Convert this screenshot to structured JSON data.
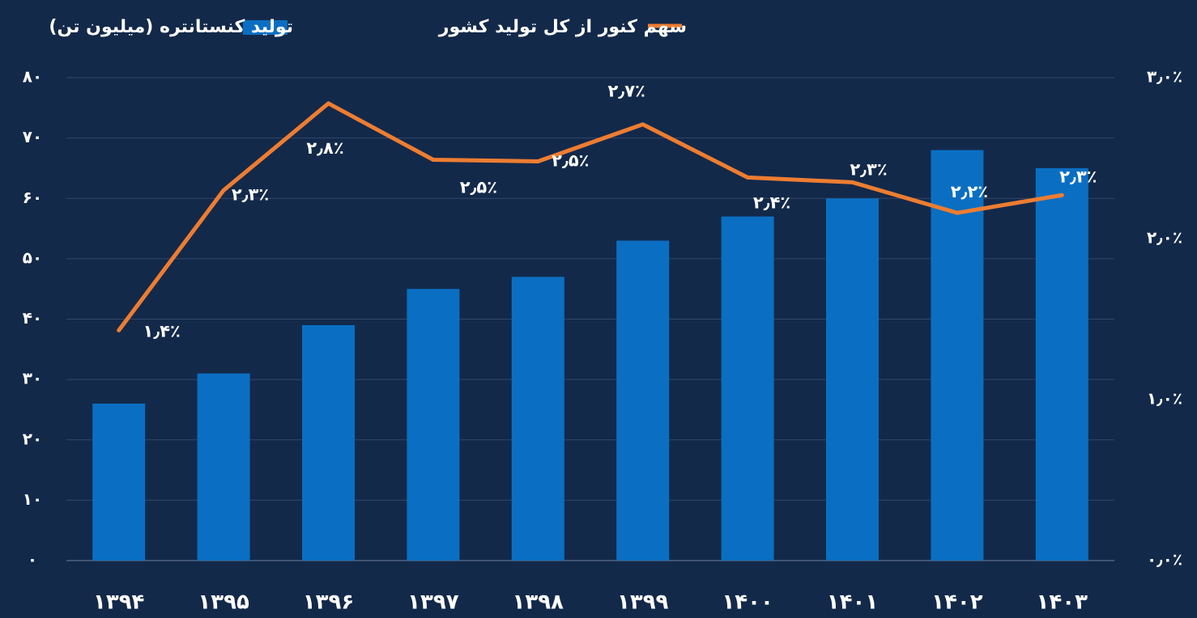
{
  "chart_data": {
    "type": "bar+line",
    "categories": [
      "۱۳۹۴",
      "۱۳۹۵",
      "۱۳۹۶",
      "۱۳۹۷",
      "۱۳۹۸",
      "۱۳۹۹",
      "۱۴۰۰",
      "۱۴۰۱",
      "۱۴۰۲",
      "۱۴۰۳"
    ],
    "series": [
      {
        "name": "تولید کنستانتره (میلیون تن)",
        "type": "bar",
        "color": "#0a6fc2",
        "values": [
          26,
          31,
          39,
          45,
          47,
          53,
          57,
          60,
          68,
          65
        ]
      },
      {
        "name": "سهم کنور از کل تولید کشور",
        "type": "line",
        "axis": "y2",
        "color": "#ed7d31",
        "values": [
          1.43,
          2.3,
          2.84,
          2.49,
          2.48,
          2.71,
          2.38,
          2.35,
          2.16,
          2.27
        ],
        "value_labels": [
          "۱٫۴٪",
          "۲٫۳٪",
          "۲٫۸٪",
          "۲٫۵٪",
          "۲٫۵٪",
          "۲٫۷٪",
          "۲٫۴٪",
          "۲٫۳٪",
          "۲٫۲٪",
          "۲٫۳٪"
        ]
      }
    ],
    "ylim": [
      0,
      80
    ],
    "yticks": [
      {
        "value": 0,
        "label": "۰"
      },
      {
        "value": 10,
        "label": "۱۰"
      },
      {
        "value": 20,
        "label": "۲۰"
      },
      {
        "value": 30,
        "label": "۳۰"
      },
      {
        "value": 40,
        "label": "۴۰"
      },
      {
        "value": 50,
        "label": "۵۰"
      },
      {
        "value": 60,
        "label": "۶۰"
      },
      {
        "value": 70,
        "label": "۷۰"
      },
      {
        "value": 80,
        "label": "۸۰"
      }
    ],
    "y2lim": [
      0,
      3
    ],
    "y2ticks": [
      {
        "value": 0,
        "label": "۰٫۰٪"
      },
      {
        "value": 1,
        "label": "۱٫۰٪"
      },
      {
        "value": 2,
        "label": "۲٫۰٪"
      },
      {
        "value": 3,
        "label": "۳٫۰٪"
      }
    ],
    "grid": true
  }
}
